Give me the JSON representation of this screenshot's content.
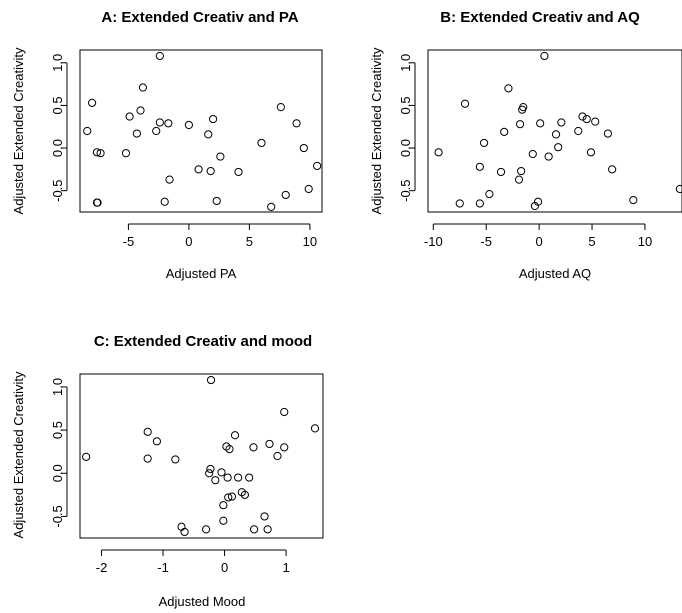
{
  "chart_data": [
    {
      "type": "scatter",
      "title": "A: Extended Creativ and PA",
      "xlabel": "Adjusted PA",
      "ylabel": "Adjusted Extended Creativity",
      "xlim": [
        -9,
        11
      ],
      "ylim": [
        -0.75,
        1.15
      ],
      "xticks": [
        "-5",
        "0",
        "5",
        "10"
      ],
      "xtick_values": [
        -5,
        0,
        5,
        10
      ],
      "yticks": [
        "-0.5",
        "0.0",
        "0.5",
        "1.0"
      ],
      "ytick_values": [
        -0.5,
        0,
        0.5,
        1.0
      ],
      "points": [
        [
          -8.4,
          0.2
        ],
        [
          -8.0,
          0.53
        ],
        [
          -7.6,
          -0.05
        ],
        [
          -7.3,
          -0.06
        ],
        [
          -7.6,
          -0.64
        ],
        [
          -7.55,
          -0.64
        ],
        [
          -5.2,
          -0.06
        ],
        [
          -4.9,
          0.37
        ],
        [
          -4.3,
          0.17
        ],
        [
          -4.0,
          0.44
        ],
        [
          -3.8,
          0.71
        ],
        [
          -2.7,
          0.2
        ],
        [
          -2.4,
          0.3
        ],
        [
          -2.4,
          1.08
        ],
        [
          -2.0,
          -0.63
        ],
        [
          -1.7,
          0.29
        ],
        [
          -1.6,
          -0.37
        ],
        [
          0.0,
          0.27
        ],
        [
          0.8,
          -0.25
        ],
        [
          1.6,
          0.16
        ],
        [
          1.8,
          -0.27
        ],
        [
          2.0,
          0.34
        ],
        [
          2.3,
          -0.62
        ],
        [
          2.6,
          -0.1
        ],
        [
          4.1,
          -0.28
        ],
        [
          6.0,
          0.06
        ],
        [
          6.8,
          -0.69
        ],
        [
          7.6,
          0.48
        ],
        [
          8.0,
          -0.55
        ],
        [
          8.9,
          0.29
        ],
        [
          9.5,
          0.0
        ],
        [
          9.9,
          -0.48
        ],
        [
          10.6,
          -0.21
        ]
      ]
    },
    {
      "type": "scatter",
      "title": "B: Extended Creativ and AQ",
      "xlabel": "Adjusted AQ",
      "ylabel": "Adjusted Extended Creativity",
      "xlim": [
        -10.5,
        13.5
      ],
      "ylim": [
        -0.75,
        1.15
      ],
      "xticks": [
        "-10",
        "-5",
        "0",
        "5",
        "10"
      ],
      "xtick_values": [
        -10,
        -5,
        0,
        5,
        10
      ],
      "yticks": [
        "-0.5",
        "0.0",
        "0.5",
        "1.0"
      ],
      "ytick_values": [
        -0.5,
        0,
        0.5,
        1.0
      ],
      "points": [
        [
          -9.5,
          -0.05
        ],
        [
          -7.5,
          -0.65
        ],
        [
          -7.0,
          0.52
        ],
        [
          -5.6,
          -0.65
        ],
        [
          -5.6,
          -0.22
        ],
        [
          -5.2,
          0.06
        ],
        [
          -4.7,
          -0.54
        ],
        [
          -3.6,
          -0.28
        ],
        [
          -3.3,
          0.19
        ],
        [
          -2.9,
          0.7
        ],
        [
          -1.9,
          -0.37
        ],
        [
          -1.8,
          0.28
        ],
        [
          -1.6,
          0.45
        ],
        [
          -1.5,
          0.48
        ],
        [
          -1.7,
          -0.27
        ],
        [
          -0.6,
          -0.07
        ],
        [
          -0.4,
          -0.68
        ],
        [
          -0.1,
          -0.63
        ],
        [
          0.1,
          0.29
        ],
        [
          0.5,
          1.08
        ],
        [
          0.9,
          -0.1
        ],
        [
          1.6,
          0.16
        ],
        [
          1.8,
          0.01
        ],
        [
          2.1,
          0.3
        ],
        [
          3.7,
          0.2
        ],
        [
          4.1,
          0.37
        ],
        [
          4.5,
          0.34
        ],
        [
          4.9,
          -0.05
        ],
        [
          5.3,
          0.31
        ],
        [
          6.5,
          0.17
        ],
        [
          6.9,
          -0.25
        ],
        [
          8.9,
          -0.61
        ],
        [
          13.3,
          -0.48
        ]
      ]
    },
    {
      "type": "scatter",
      "title": "C: Extended Creativ and mood",
      "xlabel": "Adjusted Mood",
      "ylabel": "Adjusted Extended Creativity",
      "xlim": [
        -2.35,
        1.6
      ],
      "ylim": [
        -0.75,
        1.15
      ],
      "xticks": [
        "-2",
        "-1",
        "0",
        "1"
      ],
      "xtick_values": [
        -2,
        -1,
        0,
        1
      ],
      "yticks": [
        "-0.5",
        "0.0",
        "0.5",
        "1.0"
      ],
      "ytick_values": [
        -0.5,
        0,
        0.5,
        1.0
      ],
      "points": [
        [
          -2.25,
          0.19
        ],
        [
          -1.25,
          0.48
        ],
        [
          -1.25,
          0.17
        ],
        [
          -1.1,
          0.37
        ],
        [
          -0.8,
          0.16
        ],
        [
          -0.7,
          -0.62
        ],
        [
          -0.65,
          -0.68
        ],
        [
          -0.3,
          -0.65
        ],
        [
          -0.25,
          0.0
        ],
        [
          -0.23,
          0.05
        ],
        [
          -0.22,
          1.08
        ],
        [
          -0.15,
          -0.08
        ],
        [
          -0.05,
          0.01
        ],
        [
          -0.02,
          -0.55
        ],
        [
          -0.02,
          -0.37
        ],
        [
          0.03,
          0.31
        ],
        [
          0.05,
          -0.05
        ],
        [
          0.06,
          -0.28
        ],
        [
          0.08,
          0.28
        ],
        [
          0.12,
          -0.27
        ],
        [
          0.17,
          0.44
        ],
        [
          0.22,
          -0.05
        ],
        [
          0.28,
          -0.22
        ],
        [
          0.33,
          -0.25
        ],
        [
          0.4,
          -0.05
        ],
        [
          0.47,
          0.3
        ],
        [
          0.48,
          -0.65
        ],
        [
          0.65,
          -0.5
        ],
        [
          0.7,
          -0.65
        ],
        [
          0.73,
          0.34
        ],
        [
          0.86,
          0.2
        ],
        [
          0.97,
          0.3
        ],
        [
          0.97,
          0.71
        ],
        [
          1.47,
          0.52
        ]
      ]
    }
  ]
}
